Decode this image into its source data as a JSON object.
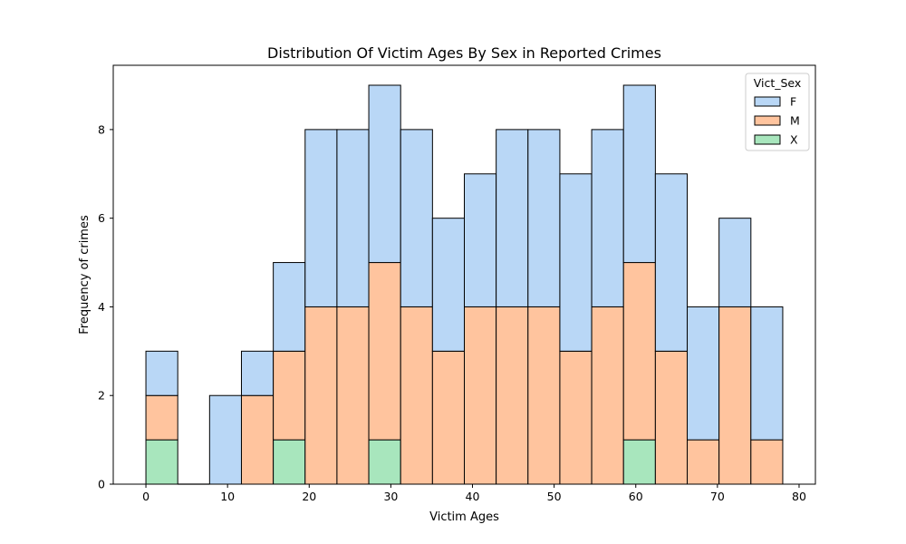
{
  "chart_data": {
    "type": "bar",
    "title": "Distribution Of Victim Ages By Sex in Reported Crimes",
    "xlabel": "Victim Ages",
    "ylabel": "Frequency of crimes",
    "xlim": [
      -4.0,
      82.0
    ],
    "ylim": [
      0,
      9.45
    ],
    "xticks": [
      0,
      10,
      20,
      30,
      40,
      50,
      60,
      70,
      80
    ],
    "yticks": [
      0,
      2,
      4,
      6,
      8
    ],
    "stacked": true,
    "grid": false,
    "legend_title": "Vict_Sex",
    "legend_position": "top-right",
    "bin_edges": [
      0.0,
      3.9,
      7.8,
      11.7,
      15.6,
      19.5,
      23.4,
      27.3,
      31.2,
      35.1,
      39.0,
      42.9,
      46.8,
      50.7,
      54.6,
      58.5,
      62.4,
      66.3,
      70.2,
      74.1,
      78.0
    ],
    "series": [
      {
        "name": "X",
        "color": "#a8e6bd",
        "values": [
          1,
          0,
          0,
          0,
          1,
          0,
          0,
          1,
          0,
          0,
          0,
          0,
          0,
          0,
          0,
          1,
          0,
          0,
          0,
          0
        ]
      },
      {
        "name": "M",
        "color": "#ffc49e",
        "values": [
          1,
          0,
          0,
          2,
          2,
          4,
          4,
          4,
          4,
          3,
          4,
          4,
          4,
          3,
          4,
          4,
          3,
          1,
          4,
          1
        ]
      },
      {
        "name": "F",
        "color": "#b9d7f6",
        "values": [
          1,
          0,
          2,
          1,
          2,
          4,
          4,
          4,
          4,
          3,
          3,
          4,
          4,
          4,
          4,
          4,
          4,
          3,
          2,
          3
        ]
      }
    ],
    "legend_order": [
      "F",
      "M",
      "X"
    ]
  }
}
